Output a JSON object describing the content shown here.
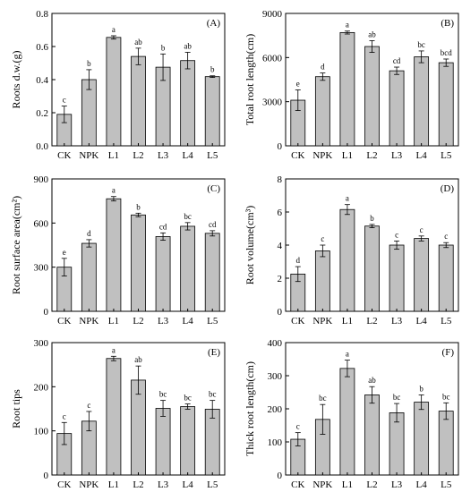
{
  "style": {
    "bar_fill": "#c0c0c0",
    "bar_stroke": "#000000",
    "axis_color": "#000000"
  },
  "chart_data": [
    {
      "type": "bar",
      "tag": "(A)",
      "ylabel": "Roots d.w.(g)",
      "categories": [
        "CK",
        "NPK",
        "L1",
        "L2",
        "L3",
        "L4",
        "L5"
      ],
      "values": [
        0.19,
        0.4,
        0.655,
        0.54,
        0.475,
        0.515,
        0.418
      ],
      "errors": [
        0.05,
        0.06,
        0.01,
        0.05,
        0.08,
        0.05,
        0.005
      ],
      "letters": [
        "c",
        "b",
        "a",
        "ab",
        "b",
        "ab",
        "b"
      ],
      "ylim": [
        0,
        0.8
      ],
      "yticks": [
        "0.0",
        "0.2",
        "0.4",
        "0.6",
        "0.8"
      ]
    },
    {
      "type": "bar",
      "tag": "(B)",
      "ylabel": "Total root length(cm)",
      "categories": [
        "CK",
        "NPK",
        "L1",
        "L2",
        "L3",
        "L4",
        "L5"
      ],
      "values": [
        3100,
        4700,
        7700,
        6750,
        5100,
        6050,
        5650
      ],
      "errors": [
        700,
        250,
        100,
        400,
        250,
        400,
        250
      ],
      "letters": [
        "e",
        "d",
        "a",
        "ab",
        "cd",
        "bc",
        "bcd"
      ],
      "ylim": [
        0,
        9000
      ],
      "yticks": [
        "0",
        "3000",
        "6000",
        "9000"
      ]
    },
    {
      "type": "bar",
      "tag": "(C)",
      "ylabel": "Root surface area(cm²)",
      "categories": [
        "CK",
        "NPK",
        "L1",
        "L2",
        "L3",
        "L4",
        "L5"
      ],
      "values": [
        300,
        462,
        765,
        655,
        508,
        578,
        530
      ],
      "errors": [
        60,
        25,
        15,
        12,
        25,
        25,
        18
      ],
      "letters": [
        "e",
        "d",
        "a",
        "b",
        "cd",
        "bc",
        "cd"
      ],
      "ylim": [
        0,
        900
      ],
      "yticks": [
        "0",
        "300",
        "600",
        "900"
      ]
    },
    {
      "type": "bar",
      "tag": "(D)",
      "ylabel": "Root volume(cm³)",
      "categories": [
        "CK",
        "NPK",
        "L1",
        "L2",
        "L3",
        "L4",
        "L5"
      ],
      "values": [
        2.25,
        3.65,
        6.15,
        5.15,
        4.0,
        4.4,
        4.0
      ],
      "errors": [
        0.45,
        0.35,
        0.3,
        0.1,
        0.25,
        0.15,
        0.15
      ],
      "letters": [
        "d",
        "c",
        "a",
        "b",
        "c",
        "c",
        "c"
      ],
      "ylim": [
        0,
        8
      ],
      "yticks": [
        "0",
        "2",
        "4",
        "6",
        "8"
      ]
    },
    {
      "type": "bar",
      "tag": "(E)",
      "ylabel": "Root tips",
      "categories": [
        "CK",
        "NPK",
        "L1",
        "L2",
        "L3",
        "L4",
        "L5"
      ],
      "values": [
        94,
        122,
        264,
        215,
        151,
        155,
        149
      ],
      "errors": [
        25,
        22,
        5,
        32,
        18,
        6,
        20
      ],
      "letters": [
        "c",
        "c",
        "a",
        "ab",
        "bc",
        "bc",
        "bc"
      ],
      "ylim": [
        0,
        300
      ],
      "yticks": [
        "0",
        "100",
        "200",
        "300"
      ]
    },
    {
      "type": "bar",
      "tag": "(F)",
      "ylabel": "Thick root length(cm)",
      "categories": [
        "CK",
        "NPK",
        "L1",
        "L2",
        "L3",
        "L4",
        "L5"
      ],
      "values": [
        108,
        168,
        322,
        242,
        188,
        220,
        193
      ],
      "errors": [
        20,
        45,
        25,
        25,
        28,
        22,
        25
      ],
      "letters": [
        "c",
        "bc",
        "a",
        "ab",
        "bc",
        "b",
        "bc"
      ],
      "ylim": [
        0,
        400
      ],
      "yticks": [
        "0",
        "100",
        "200",
        "300",
        "400"
      ]
    }
  ]
}
